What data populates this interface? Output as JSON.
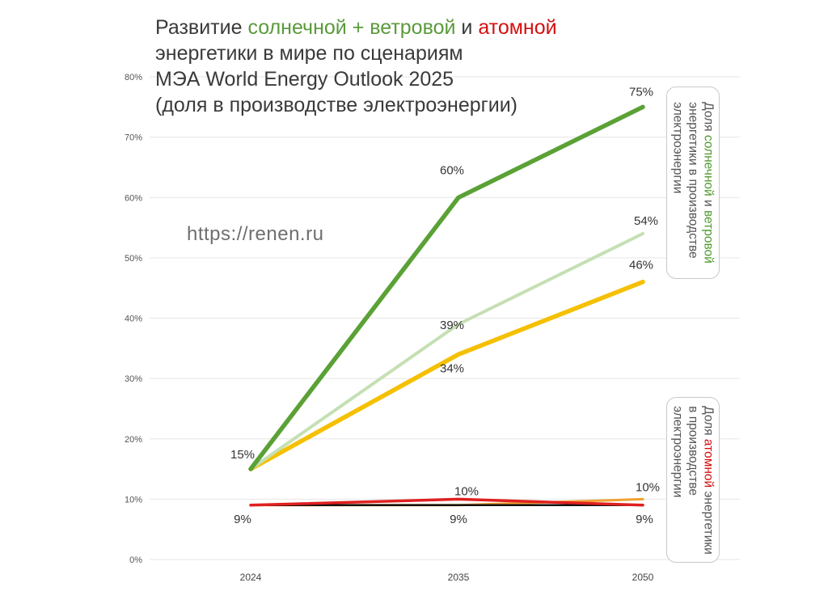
{
  "title": {
    "part1": "Развитие ",
    "green": "солнечной + ветровой",
    "part2": " и ",
    "red": "атомной",
    "line2": "энергетики в мире по сценариям",
    "line3": "МЭА World Energy Outlook 2025",
    "line4": "(доля в производстве электроэнергии)"
  },
  "watermark": "https://renen.ru",
  "callout_renewables": {
    "prefix": "Доля ",
    "green1": "солнечной",
    "mid": " и ",
    "green2": "ветровой",
    "line2": "энергетики в производстве",
    "line3": "электроэнергии"
  },
  "callout_nuclear": {
    "prefix": "Доля ",
    "red": "атомной",
    "suffix": " энергетики",
    "line2": "в производстве",
    "line3": "электроэнергии"
  },
  "chart_data": {
    "type": "line",
    "categories": [
      "2024",
      "2035",
      "2050"
    ],
    "ylim": [
      0,
      0.8
    ],
    "yticks": [
      "0%",
      "10%",
      "20%",
      "30%",
      "40%",
      "50%",
      "60%",
      "70%",
      "80%"
    ],
    "grid": true,
    "series": [
      {
        "color": "#f5c000",
        "values": [
          0.15,
          0.34,
          0.46
        ]
      },
      {
        "color": "#c5e0b4",
        "values": [
          0.15,
          0.39,
          0.54
        ]
      },
      {
        "color": "#5aa136",
        "values": [
          0.15,
          0.6,
          0.75
        ]
      },
      {
        "color": "#f0a030",
        "values": [
          0.09,
          0.09,
          0.1
        ]
      },
      {
        "color": "#111111",
        "values": [
          0.09,
          0.09,
          0.09
        ]
      },
      {
        "color": "#e02020",
        "values": [
          0.09,
          0.1,
          0.09
        ]
      }
    ],
    "data_labels": [
      "15%",
      "60%",
      "75%",
      "39%",
      "54%",
      "34%",
      "46%",
      "10%",
      "10%",
      "9%",
      "9%",
      "9%"
    ]
  },
  "colors": {
    "renewables_accent": "#5aa136",
    "nuclear_accent": "#d40f0f"
  }
}
